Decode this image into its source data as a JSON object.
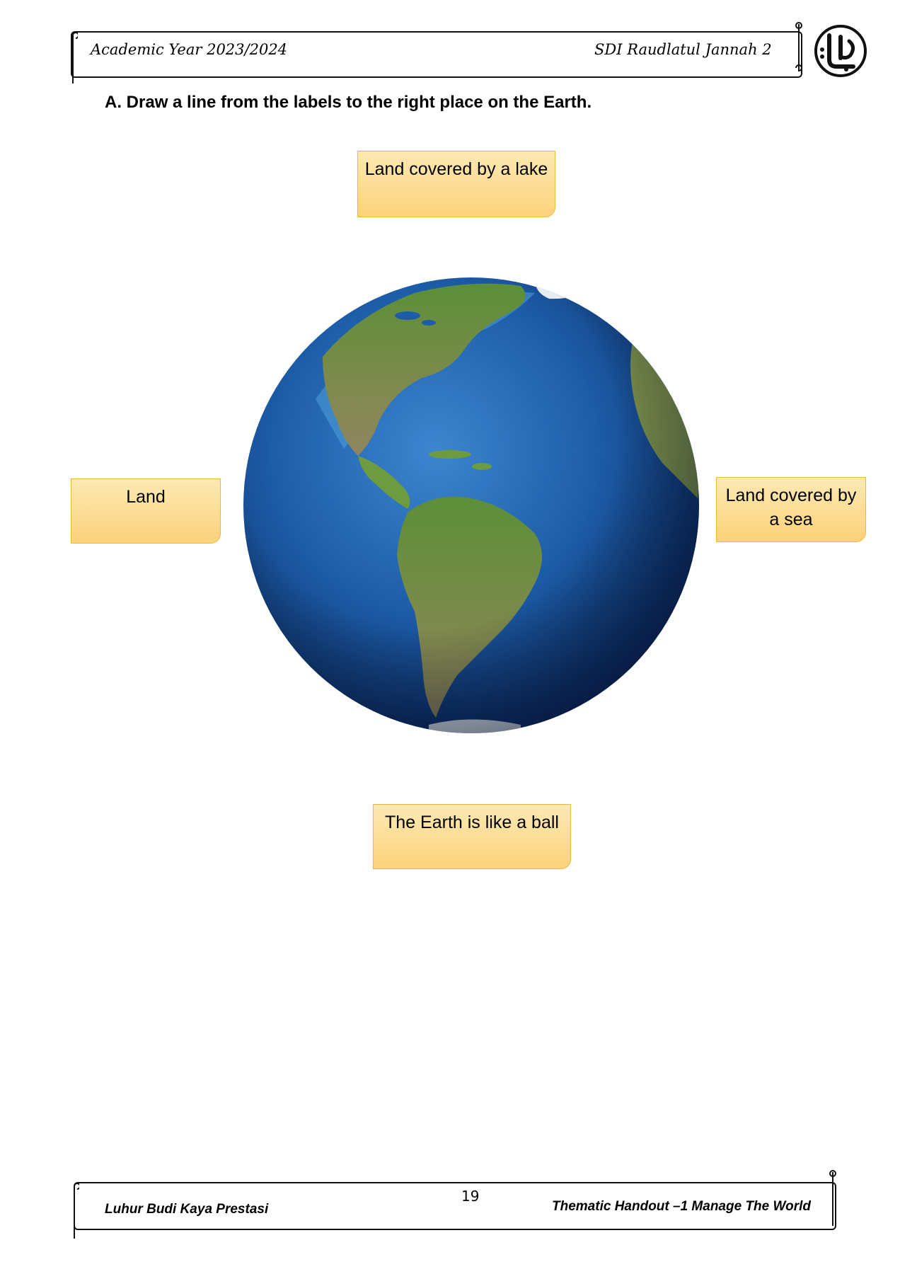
{
  "header": {
    "academic_year": "Academic Year 2023/2024",
    "school_name": "SDI Raudlatul Jannah 2",
    "logo_icon": "calligraphy-logo-icon"
  },
  "instruction": "A.  Draw a line from the labels to the right place on the Earth.",
  "labels": {
    "top": "Land covered by a lake",
    "left": "Land",
    "right": "Land covered by a sea",
    "bottom": "The Earth is like a ball"
  },
  "image": {
    "icon": "earth-globe-icon"
  },
  "footer": {
    "motto": "Luhur Budi Kaya Prestasi",
    "page_number": "19",
    "handout_title": "Thematic Handout –1 Manage The World"
  },
  "colors": {
    "label_fill": "#fcd27a",
    "label_border": "#f2b737",
    "ocean": "#1f5fa8",
    "land": "#5f8f3a"
  }
}
